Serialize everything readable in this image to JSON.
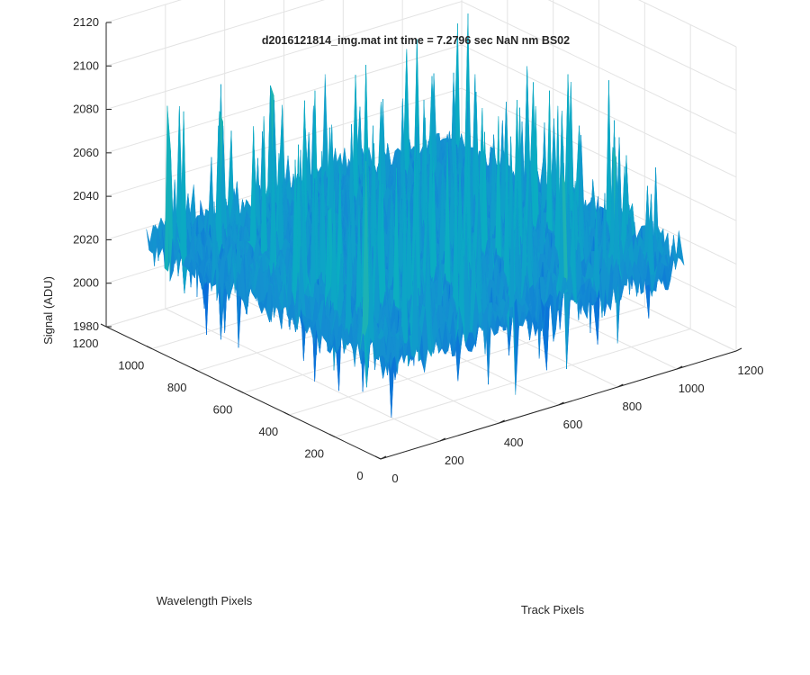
{
  "chart_data": {
    "type": "surface",
    "title": "d2016121814_img.mat int time = 7.2796 sec  NaN nm BS02",
    "zlabel": "Signal (ADU)",
    "xlabel": "Track Pixels",
    "ylabel": "Wavelength Pixels",
    "xlim": [
      0,
      1200
    ],
    "ylim": [
      0,
      1200
    ],
    "zlim": [
      1980,
      2120
    ],
    "x_ticks": [
      "0",
      "200",
      "400",
      "600",
      "800",
      "1000",
      "1200"
    ],
    "y_ticks": [
      "0",
      "200",
      "400",
      "600",
      "800",
      "1000",
      "1200"
    ],
    "z_ticks": [
      "1980",
      "2000",
      "2020",
      "2040",
      "2060",
      "2080",
      "2100",
      "2120"
    ],
    "grid": true,
    "colormap": "parula",
    "surface": {
      "x_range": [
        0,
        1024
      ],
      "y_range": [
        0,
        1024
      ],
      "signal_baseline": 2028,
      "signal_min": 1990,
      "signal_max": 2117
    }
  }
}
